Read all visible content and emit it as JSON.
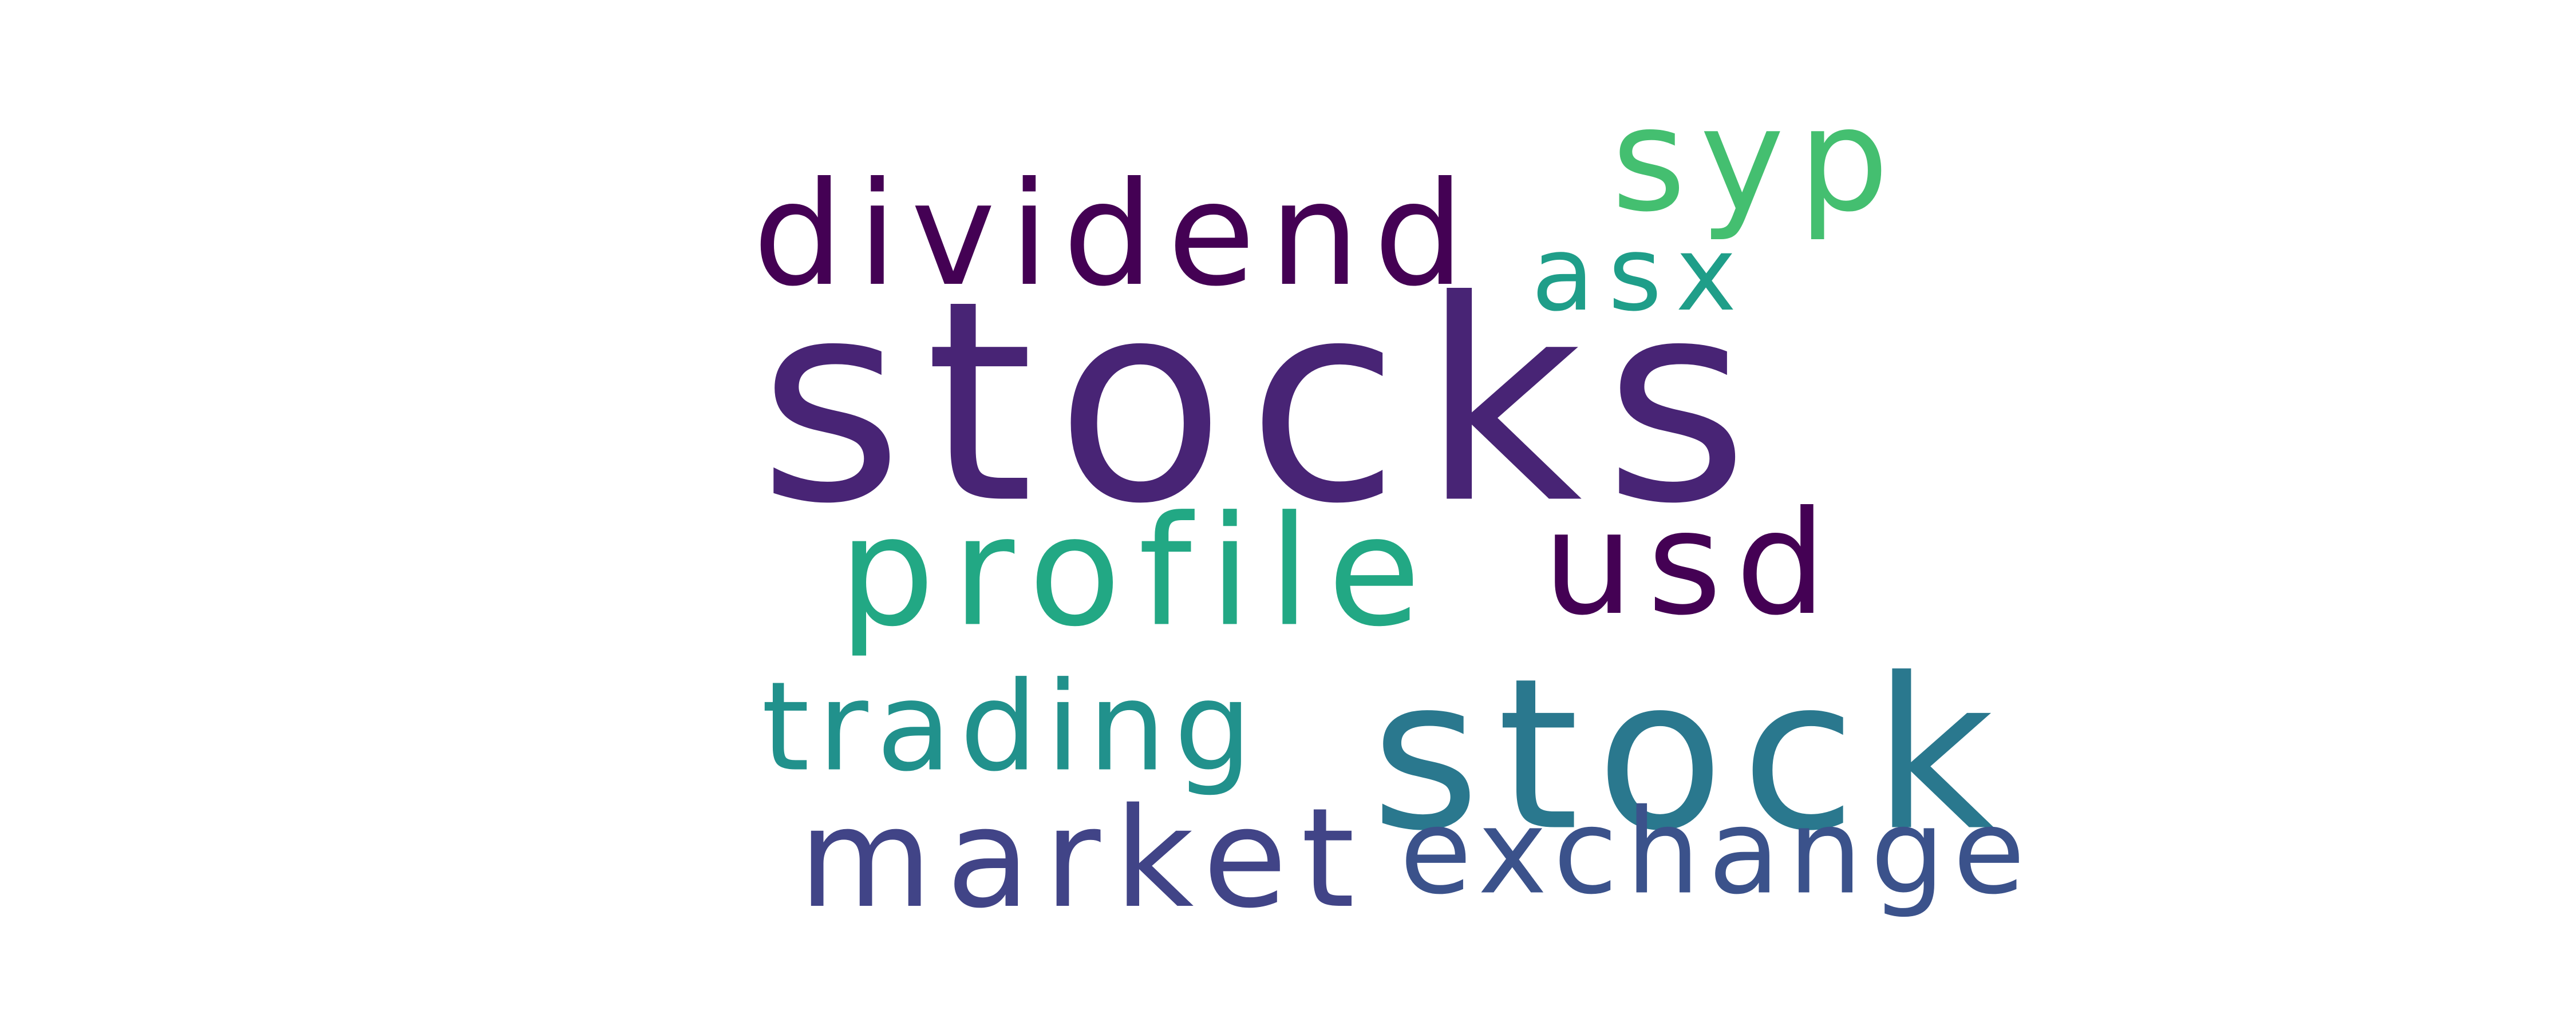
{
  "words": [
    {
      "text": "stocks",
      "color": "#482475"
    },
    {
      "text": "stock",
      "color": "#2a788e"
    },
    {
      "text": "profile",
      "color": "#22a884"
    },
    {
      "text": "dividend",
      "color": "#440154"
    },
    {
      "text": "market",
      "color": "#414487"
    },
    {
      "text": "exchange",
      "color": "#3b528b"
    },
    {
      "text": "usd",
      "color": "#440154"
    },
    {
      "text": "syp",
      "color": "#44bf70"
    },
    {
      "text": "trading",
      "color": "#21918c"
    },
    {
      "text": "asx",
      "color": "#1f9e89"
    }
  ]
}
